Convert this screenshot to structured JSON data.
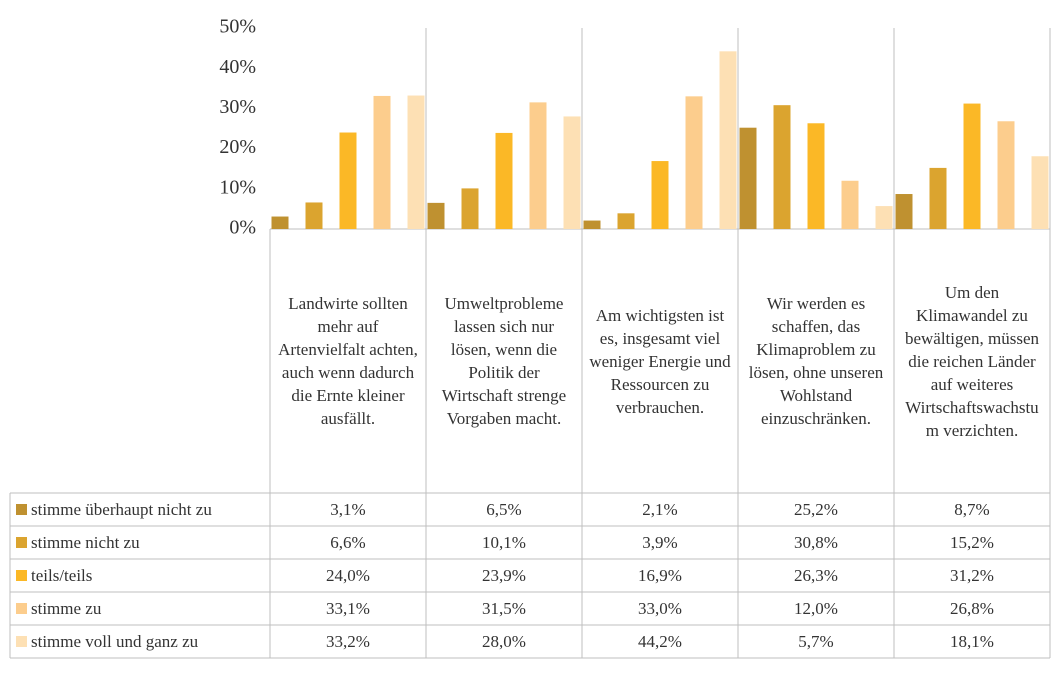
{
  "chart_data": {
    "type": "bar",
    "categories": [
      "Landwirte sollten mehr auf Artenvielfalt achten, auch wenn dadurch die Ernte kleiner ausfällt.",
      "Umweltprobleme lassen sich nur lösen, wenn die Politik der Wirtschaft strenge Vorgaben macht.",
      "Am wichtigsten ist es, insgesamt viel weniger Energie und Ressourcen zu verbrauchen.",
      "Wir werden es schaffen, das Klimaproblem zu lösen, ohne unseren Wohlstand einzuschränken.",
      "Um den Klimawandel zu bewältigen, müssen die reichen Länder auf weiteres Wirtschaftswachstum verzichten."
    ],
    "series": [
      {
        "name": "stimme überhaupt nicht zu",
        "color": "#bf9130",
        "values": [
          3.1,
          6.5,
          2.1,
          25.2,
          8.7
        ],
        "value_labels": [
          "3,1%",
          "6,5%",
          "2,1%",
          "25,2%",
          "8,7%"
        ]
      },
      {
        "name": "stimme nicht zu",
        "color": "#dba42f",
        "values": [
          6.6,
          10.1,
          3.9,
          30.8,
          15.2
        ],
        "value_labels": [
          "6,6%",
          "10,1%",
          "3,9%",
          "30,8%",
          "15,2%"
        ]
      },
      {
        "name": "teils/teils",
        "color": "#fbb826",
        "values": [
          24.0,
          23.9,
          16.9,
          26.3,
          31.2
        ],
        "value_labels": [
          "24,0%",
          "23,9%",
          "16,9%",
          "26,3%",
          "31,2%"
        ]
      },
      {
        "name": "stimme zu",
        "color": "#fccd8d",
        "values": [
          33.1,
          31.5,
          33.0,
          12.0,
          26.8
        ],
        "value_labels": [
          "33,1%",
          "31,5%",
          "33,0%",
          "12,0%",
          "26,8%"
        ]
      },
      {
        "name": "stimme voll und ganz zu",
        "color": "#fde0b4",
        "values": [
          33.2,
          28.0,
          44.2,
          5.7,
          18.1
        ],
        "value_labels": [
          "33,2%",
          "28,0%",
          "44,2%",
          "5,7%",
          "18,1%"
        ]
      }
    ],
    "ylim": [
      0,
      50
    ],
    "yticks": [
      {
        "value": 0,
        "label": "0%"
      },
      {
        "value": 10,
        "label": "10%"
      },
      {
        "value": 20,
        "label": "20%"
      },
      {
        "value": 30,
        "label": "30%"
      },
      {
        "value": 40,
        "label": "40%"
      },
      {
        "value": 50,
        "label": "50%"
      }
    ]
  }
}
